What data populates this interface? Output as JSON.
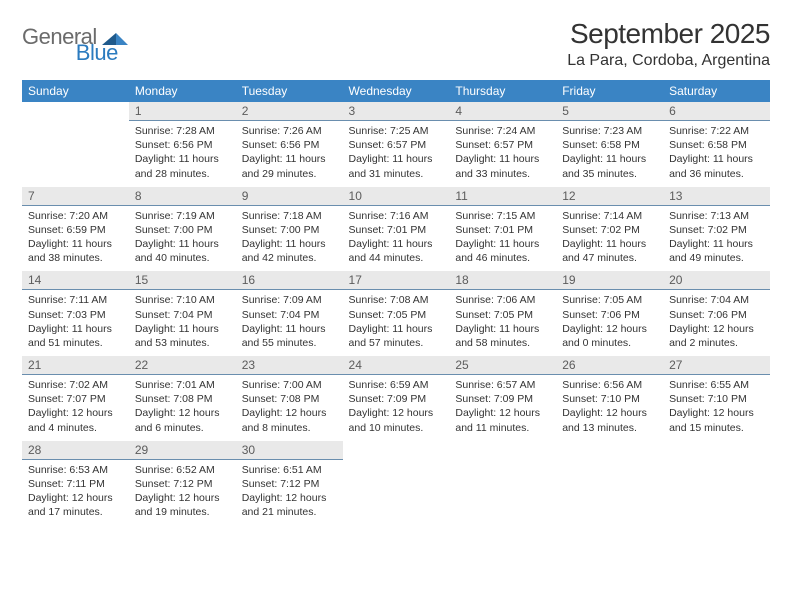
{
  "logo": {
    "text_general": "General",
    "text_blue": "Blue"
  },
  "title": "September 2025",
  "location": "La Para, Cordoba, Argentina",
  "colors": {
    "header_bg": "#3a84c4",
    "header_text": "#ffffff",
    "daynum_bg": "#e9e9e9",
    "daynum_border": "#6a8eae",
    "logo_gray": "#6b6b6b",
    "logo_blue": "#2b7bbf"
  },
  "day_headers": [
    "Sunday",
    "Monday",
    "Tuesday",
    "Wednesday",
    "Thursday",
    "Friday",
    "Saturday"
  ],
  "cells": [
    {
      "n": "",
      "sr": "",
      "ss": "",
      "dl": ""
    },
    {
      "n": "1",
      "sr": "Sunrise: 7:28 AM",
      "ss": "Sunset: 6:56 PM",
      "dl": "Daylight: 11 hours and 28 minutes."
    },
    {
      "n": "2",
      "sr": "Sunrise: 7:26 AM",
      "ss": "Sunset: 6:56 PM",
      "dl": "Daylight: 11 hours and 29 minutes."
    },
    {
      "n": "3",
      "sr": "Sunrise: 7:25 AM",
      "ss": "Sunset: 6:57 PM",
      "dl": "Daylight: 11 hours and 31 minutes."
    },
    {
      "n": "4",
      "sr": "Sunrise: 7:24 AM",
      "ss": "Sunset: 6:57 PM",
      "dl": "Daylight: 11 hours and 33 minutes."
    },
    {
      "n": "5",
      "sr": "Sunrise: 7:23 AM",
      "ss": "Sunset: 6:58 PM",
      "dl": "Daylight: 11 hours and 35 minutes."
    },
    {
      "n": "6",
      "sr": "Sunrise: 7:22 AM",
      "ss": "Sunset: 6:58 PM",
      "dl": "Daylight: 11 hours and 36 minutes."
    },
    {
      "n": "7",
      "sr": "Sunrise: 7:20 AM",
      "ss": "Sunset: 6:59 PM",
      "dl": "Daylight: 11 hours and 38 minutes."
    },
    {
      "n": "8",
      "sr": "Sunrise: 7:19 AM",
      "ss": "Sunset: 7:00 PM",
      "dl": "Daylight: 11 hours and 40 minutes."
    },
    {
      "n": "9",
      "sr": "Sunrise: 7:18 AM",
      "ss": "Sunset: 7:00 PM",
      "dl": "Daylight: 11 hours and 42 minutes."
    },
    {
      "n": "10",
      "sr": "Sunrise: 7:16 AM",
      "ss": "Sunset: 7:01 PM",
      "dl": "Daylight: 11 hours and 44 minutes."
    },
    {
      "n": "11",
      "sr": "Sunrise: 7:15 AM",
      "ss": "Sunset: 7:01 PM",
      "dl": "Daylight: 11 hours and 46 minutes."
    },
    {
      "n": "12",
      "sr": "Sunrise: 7:14 AM",
      "ss": "Sunset: 7:02 PM",
      "dl": "Daylight: 11 hours and 47 minutes."
    },
    {
      "n": "13",
      "sr": "Sunrise: 7:13 AM",
      "ss": "Sunset: 7:02 PM",
      "dl": "Daylight: 11 hours and 49 minutes."
    },
    {
      "n": "14",
      "sr": "Sunrise: 7:11 AM",
      "ss": "Sunset: 7:03 PM",
      "dl": "Daylight: 11 hours and 51 minutes."
    },
    {
      "n": "15",
      "sr": "Sunrise: 7:10 AM",
      "ss": "Sunset: 7:04 PM",
      "dl": "Daylight: 11 hours and 53 minutes."
    },
    {
      "n": "16",
      "sr": "Sunrise: 7:09 AM",
      "ss": "Sunset: 7:04 PM",
      "dl": "Daylight: 11 hours and 55 minutes."
    },
    {
      "n": "17",
      "sr": "Sunrise: 7:08 AM",
      "ss": "Sunset: 7:05 PM",
      "dl": "Daylight: 11 hours and 57 minutes."
    },
    {
      "n": "18",
      "sr": "Sunrise: 7:06 AM",
      "ss": "Sunset: 7:05 PM",
      "dl": "Daylight: 11 hours and 58 minutes."
    },
    {
      "n": "19",
      "sr": "Sunrise: 7:05 AM",
      "ss": "Sunset: 7:06 PM",
      "dl": "Daylight: 12 hours and 0 minutes."
    },
    {
      "n": "20",
      "sr": "Sunrise: 7:04 AM",
      "ss": "Sunset: 7:06 PM",
      "dl": "Daylight: 12 hours and 2 minutes."
    },
    {
      "n": "21",
      "sr": "Sunrise: 7:02 AM",
      "ss": "Sunset: 7:07 PM",
      "dl": "Daylight: 12 hours and 4 minutes."
    },
    {
      "n": "22",
      "sr": "Sunrise: 7:01 AM",
      "ss": "Sunset: 7:08 PM",
      "dl": "Daylight: 12 hours and 6 minutes."
    },
    {
      "n": "23",
      "sr": "Sunrise: 7:00 AM",
      "ss": "Sunset: 7:08 PM",
      "dl": "Daylight: 12 hours and 8 minutes."
    },
    {
      "n": "24",
      "sr": "Sunrise: 6:59 AM",
      "ss": "Sunset: 7:09 PM",
      "dl": "Daylight: 12 hours and 10 minutes."
    },
    {
      "n": "25",
      "sr": "Sunrise: 6:57 AM",
      "ss": "Sunset: 7:09 PM",
      "dl": "Daylight: 12 hours and 11 minutes."
    },
    {
      "n": "26",
      "sr": "Sunrise: 6:56 AM",
      "ss": "Sunset: 7:10 PM",
      "dl": "Daylight: 12 hours and 13 minutes."
    },
    {
      "n": "27",
      "sr": "Sunrise: 6:55 AM",
      "ss": "Sunset: 7:10 PM",
      "dl": "Daylight: 12 hours and 15 minutes."
    },
    {
      "n": "28",
      "sr": "Sunrise: 6:53 AM",
      "ss": "Sunset: 7:11 PM",
      "dl": "Daylight: 12 hours and 17 minutes."
    },
    {
      "n": "29",
      "sr": "Sunrise: 6:52 AM",
      "ss": "Sunset: 7:12 PM",
      "dl": "Daylight: 12 hours and 19 minutes."
    },
    {
      "n": "30",
      "sr": "Sunrise: 6:51 AM",
      "ss": "Sunset: 7:12 PM",
      "dl": "Daylight: 12 hours and 21 minutes."
    },
    {
      "n": "",
      "sr": "",
      "ss": "",
      "dl": ""
    },
    {
      "n": "",
      "sr": "",
      "ss": "",
      "dl": ""
    },
    {
      "n": "",
      "sr": "",
      "ss": "",
      "dl": ""
    },
    {
      "n": "",
      "sr": "",
      "ss": "",
      "dl": ""
    }
  ]
}
